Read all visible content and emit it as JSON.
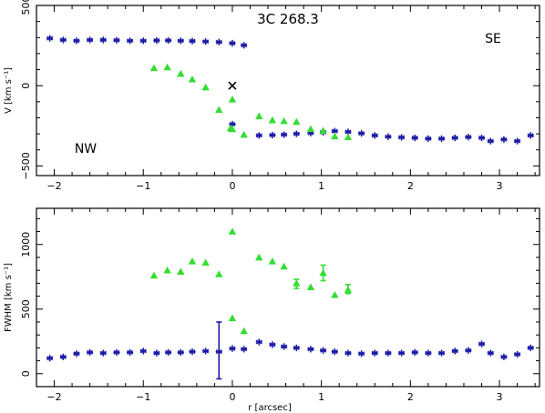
{
  "colors": {
    "blue": "#1a1aa8",
    "green": "#33dd33",
    "black": "#000000"
  },
  "chart_data": [
    {
      "type": "scatter",
      "title": "3C 268.3",
      "annotations": [
        "SE",
        "NW"
      ],
      "xlabel": "",
      "ylabel": "V [km s⁻¹]",
      "xlim": [
        -2.2,
        3.45
      ],
      "ylim": [
        -560,
        500
      ],
      "xticks": [
        -2,
        -1,
        0,
        1,
        2,
        3
      ],
      "xtick_labels": [
        "−2",
        "−1",
        "0",
        "1",
        "2",
        "3"
      ],
      "yticks": [
        -500,
        0,
        500
      ],
      "ytick_labels": [
        "−500",
        "0",
        "500"
      ],
      "series": [
        {
          "marker": "asterisk",
          "color": "blue",
          "points": [
            [
              -2.05,
              295
            ],
            [
              -1.9,
              285
            ],
            [
              -1.75,
              280
            ],
            [
              -1.6,
              285
            ],
            [
              -1.45,
              285
            ],
            [
              -1.3,
              283
            ],
            [
              -1.15,
              280
            ],
            [
              -1.0,
              280
            ],
            [
              -0.85,
              282
            ],
            [
              -0.72,
              282
            ],
            [
              -0.58,
              280
            ],
            [
              -0.45,
              278
            ],
            [
              -0.3,
              275
            ],
            [
              -0.15,
              272
            ],
            [
              0.0,
              265
            ],
            [
              0.13,
              252
            ],
            [
              0.0,
              -240
            ],
            [
              0.3,
              -310
            ],
            [
              0.45,
              -308
            ],
            [
              0.58,
              -305
            ],
            [
              0.72,
              -300
            ],
            [
              0.88,
              -295
            ],
            [
              1.02,
              -290
            ],
            [
              1.15,
              -283
            ],
            [
              1.3,
              -288
            ],
            [
              1.45,
              -297
            ],
            [
              1.6,
              -310
            ],
            [
              1.75,
              -318
            ],
            [
              1.9,
              -322
            ],
            [
              2.05,
              -325
            ],
            [
              2.2,
              -330
            ],
            [
              2.35,
              -330
            ],
            [
              2.5,
              -325
            ],
            [
              2.65,
              -320
            ],
            [
              2.8,
              -325
            ],
            [
              2.9,
              -345
            ],
            [
              3.05,
              -335
            ],
            [
              3.2,
              -345
            ],
            [
              3.35,
              -310
            ]
          ]
        },
        {
          "marker": "triangle",
          "color": "green",
          "points": [
            [
              -0.88,
              110
            ],
            [
              -0.73,
              115
            ],
            [
              -0.58,
              75
            ],
            [
              -0.45,
              40
            ],
            [
              -0.3,
              -10
            ],
            [
              -0.15,
              -150
            ],
            [
              -0.02,
              -265
            ],
            [
              0.0,
              -85
            ],
            [
              0.0,
              -270
            ],
            [
              0.13,
              -305
            ],
            [
              0.3,
              -190
            ],
            [
              0.45,
              -215
            ],
            [
              0.58,
              -220
            ],
            [
              0.72,
              -225
            ],
            [
              0.88,
              -270
            ],
            [
              1.02,
              -280
            ],
            [
              1.15,
              -315
            ],
            [
              1.3,
              -320
            ]
          ]
        },
        {
          "marker": "cross",
          "color": "black",
          "points": [
            [
              0.0,
              0
            ]
          ]
        }
      ]
    },
    {
      "type": "scatter",
      "title": "",
      "xlabel": "r [arcsec]",
      "ylabel": "FWHM [km s⁻¹]",
      "xlim": [
        -2.2,
        3.45
      ],
      "ylim": [
        -100,
        1280
      ],
      "xticks": [
        -2,
        -1,
        0,
        1,
        2,
        3
      ],
      "xtick_labels": [
        "−2",
        "−1",
        "0",
        "1",
        "2",
        "3"
      ],
      "yticks": [
        0,
        500,
        1000
      ],
      "ytick_labels": [
        "0",
        "500",
        "1000"
      ],
      "series": [
        {
          "marker": "asterisk",
          "color": "blue",
          "points": [
            [
              -2.05,
              120
            ],
            [
              -1.9,
              130
            ],
            [
              -1.75,
              155
            ],
            [
              -1.6,
              165
            ],
            [
              -1.45,
              160
            ],
            [
              -1.3,
              165
            ],
            [
              -1.15,
              165
            ],
            [
              -1.0,
              175
            ],
            [
              -0.85,
              160
            ],
            [
              -0.72,
              165
            ],
            [
              -0.58,
              165
            ],
            [
              -0.45,
              170
            ],
            [
              -0.3,
              175
            ],
            [
              -0.15,
              170
            ],
            [
              0.0,
              195
            ],
            [
              0.13,
              190
            ],
            [
              0.3,
              245
            ],
            [
              0.45,
              225
            ],
            [
              0.58,
              210
            ],
            [
              0.72,
              200
            ],
            [
              0.88,
              190
            ],
            [
              1.02,
              180
            ],
            [
              1.15,
              170
            ],
            [
              1.3,
              160
            ],
            [
              1.45,
              155
            ],
            [
              1.6,
              160
            ],
            [
              1.75,
              160
            ],
            [
              1.9,
              160
            ],
            [
              2.05,
              165
            ],
            [
              2.2,
              160
            ],
            [
              2.35,
              160
            ],
            [
              2.5,
              175
            ],
            [
              2.65,
              180
            ],
            [
              2.8,
              230
            ],
            [
              2.9,
              160
            ],
            [
              3.05,
              130
            ],
            [
              3.2,
              150
            ],
            [
              3.35,
              200
            ]
          ]
        },
        {
          "marker": "triangle",
          "color": "green",
          "points": [
            [
              -0.88,
              760
            ],
            [
              -0.73,
              800
            ],
            [
              -0.58,
              790
            ],
            [
              -0.45,
              870
            ],
            [
              -0.3,
              860
            ],
            [
              -0.15,
              770
            ],
            [
              0.0,
              1100
            ],
            [
              0.3,
              900
            ],
            [
              0.45,
              870
            ],
            [
              0.58,
              830
            ],
            [
              0.72,
              700
            ],
            [
              0.88,
              670
            ],
            [
              1.02,
              780
            ],
            [
              1.15,
              610
            ],
            [
              1.3,
              650
            ],
            [
              0.0,
              430
            ],
            [
              0.13,
              330
            ]
          ]
        }
      ],
      "error_bars": [
        {
          "x": -0.15,
          "low": -40,
          "high": 400,
          "color": "blue"
        },
        {
          "x": 1.02,
          "low": 720,
          "high": 840,
          "color": "green"
        },
        {
          "x": 1.3,
          "low": 620,
          "high": 690,
          "color": "green"
        },
        {
          "x": 0.72,
          "low": 660,
          "high": 730,
          "color": "green"
        }
      ]
    }
  ]
}
